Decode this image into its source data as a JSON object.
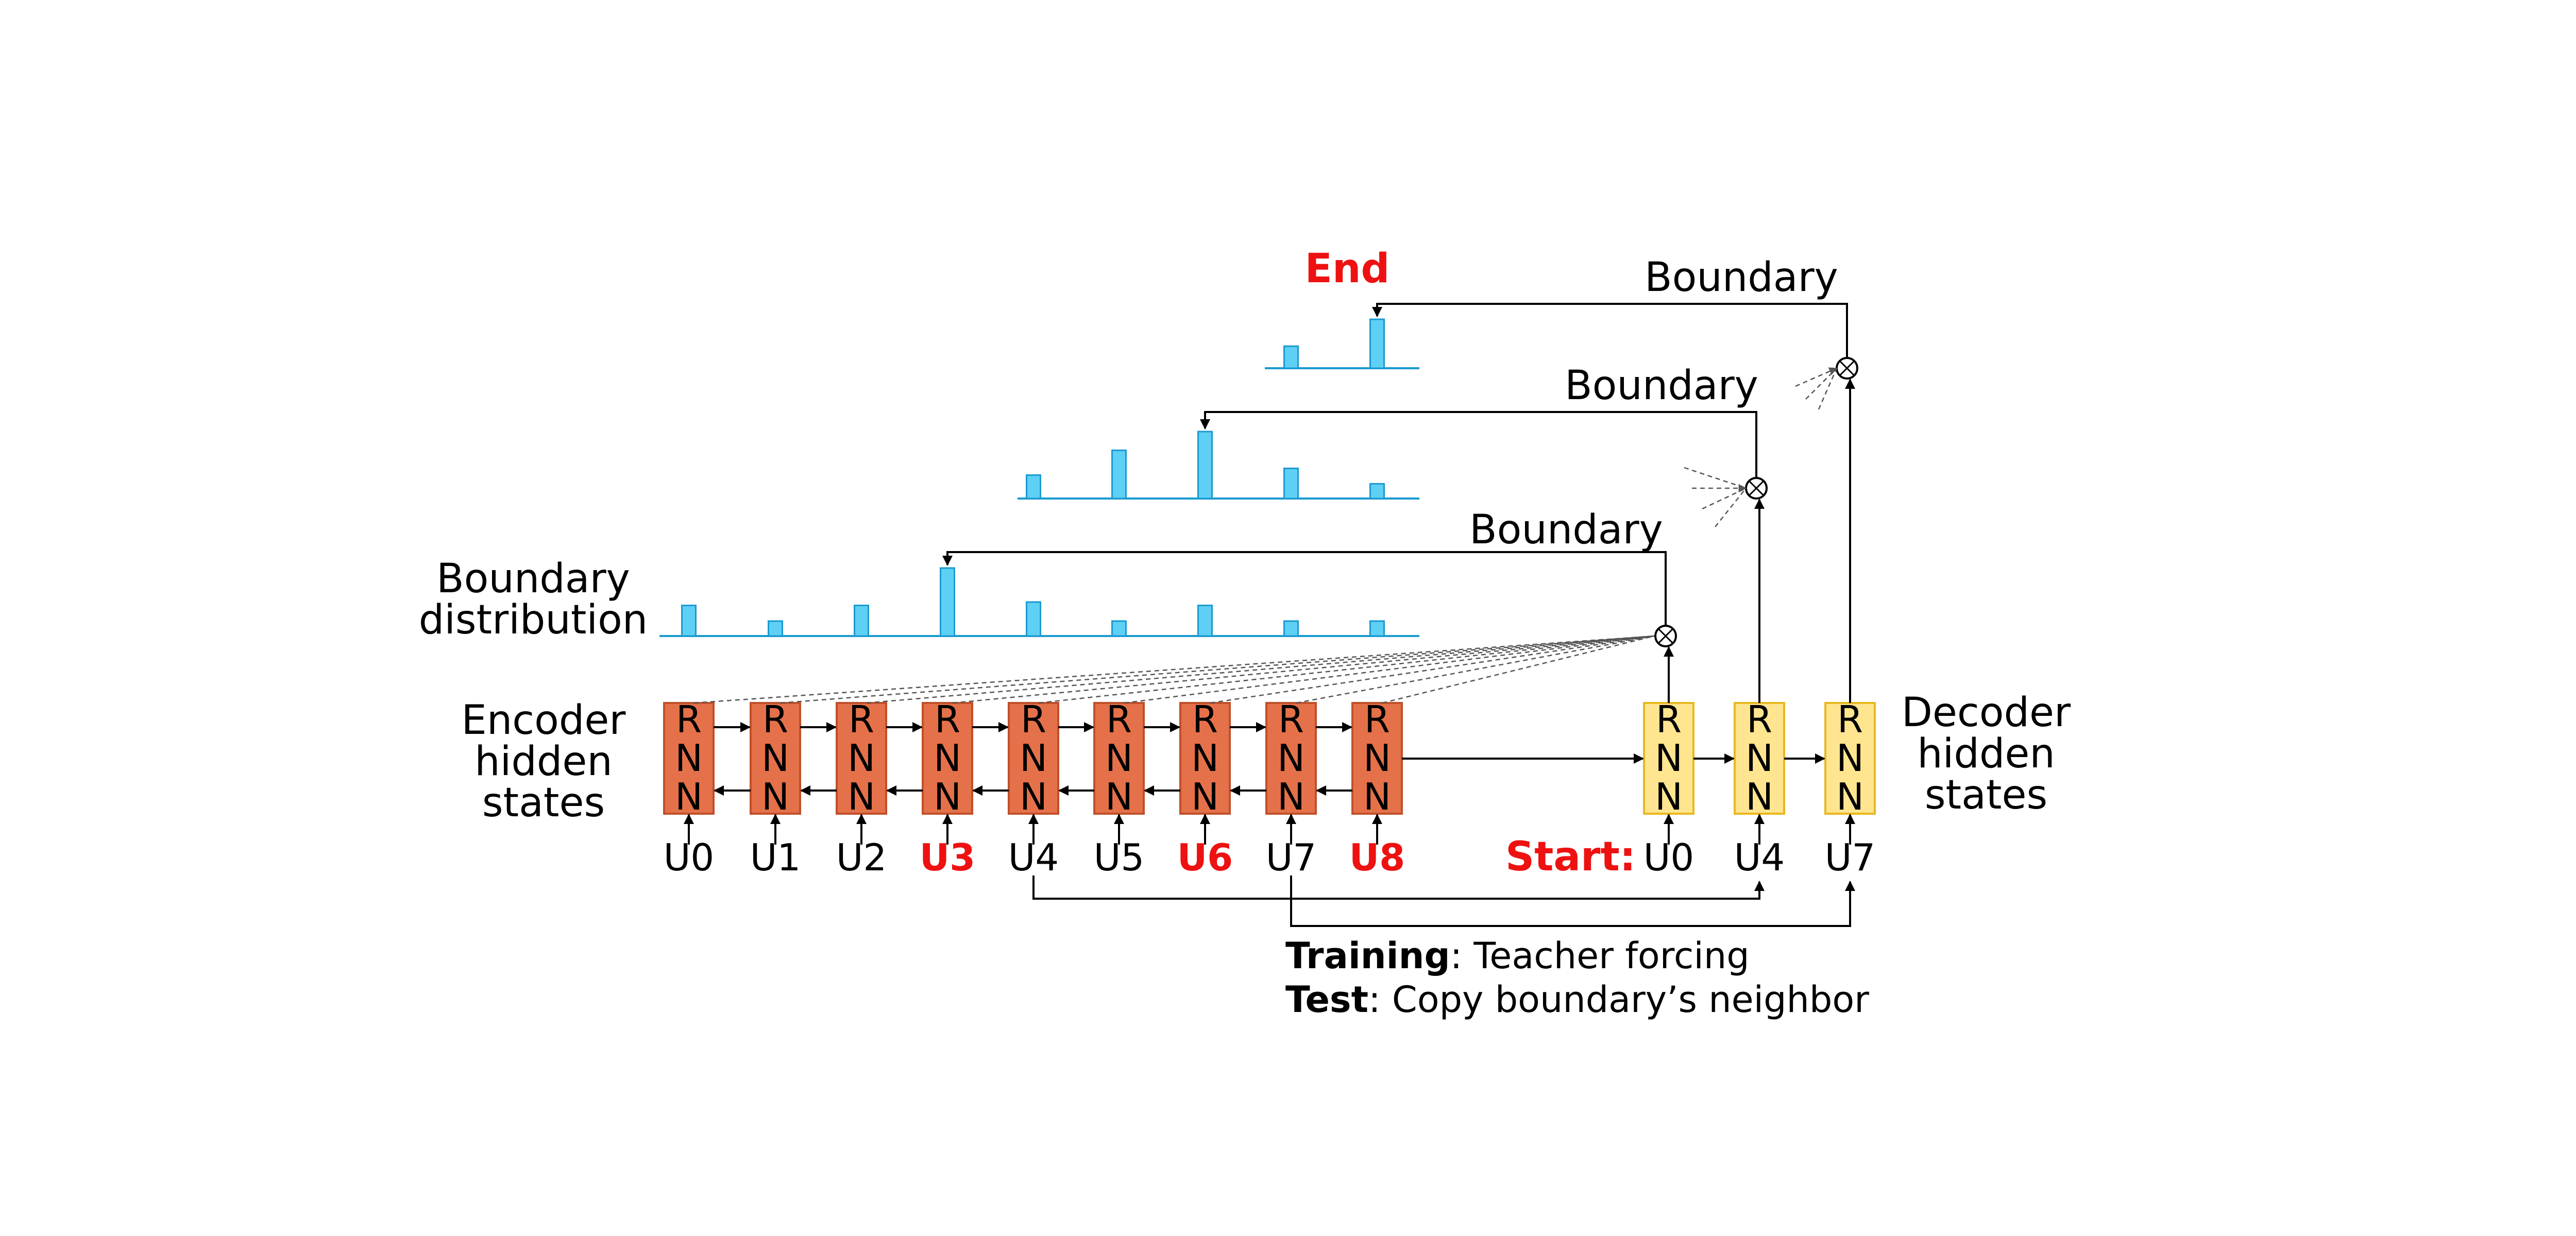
{
  "colors": {
    "encoder_fill": "#E5714A",
    "encoder_stroke": "#C0502A",
    "decoder_fill": "#FFE58F",
    "decoder_stroke": "#E8B820",
    "bar_fill": "#5FD0F5",
    "bar_stroke": "#1A9AD0",
    "highlight": "#EE1111"
  },
  "rnn_cell": {
    "letters": [
      "R",
      "N",
      "N"
    ]
  },
  "labels": {
    "encoder_label": [
      "Encoder",
      "hidden",
      "states"
    ],
    "decoder_label": [
      "Decoder",
      "hidden",
      "states"
    ],
    "distribution_label": [
      "Boundary",
      "distribution"
    ],
    "boundary": "Boundary",
    "end": "End",
    "start": "Start:",
    "training_bold": "Training",
    "training_rest": ": Teacher forcing",
    "test_bold": "Test",
    "test_rest": ": Copy boundary’s neighbor"
  },
  "encoder": {
    "inputs": [
      {
        "label": "U0",
        "highlight": false
      },
      {
        "label": "U1",
        "highlight": false
      },
      {
        "label": "U2",
        "highlight": false
      },
      {
        "label": "U3",
        "highlight": true
      },
      {
        "label": "U4",
        "highlight": false
      },
      {
        "label": "U5",
        "highlight": false
      },
      {
        "label": "U6",
        "highlight": true
      },
      {
        "label": "U7",
        "highlight": false
      },
      {
        "label": "U8",
        "highlight": true
      }
    ]
  },
  "decoder": {
    "inputs": [
      {
        "label": "U0"
      },
      {
        "label": "U4"
      },
      {
        "label": "U7"
      }
    ]
  },
  "distributions": [
    {
      "step": 1,
      "bars": [
        {
          "position": 0,
          "value": 0.45
        },
        {
          "position": 1,
          "value": 0.22
        },
        {
          "position": 2,
          "value": 0.45
        },
        {
          "position": 3,
          "value": 1.0
        },
        {
          "position": 4,
          "value": 0.5
        },
        {
          "position": 5,
          "value": 0.22
        },
        {
          "position": 6,
          "value": 0.45
        },
        {
          "position": 7,
          "value": 0.22
        },
        {
          "position": 8,
          "value": 0.22
        }
      ]
    },
    {
      "step": 2,
      "bars": [
        {
          "position": 4,
          "value": 0.35
        },
        {
          "position": 5,
          "value": 0.72
        },
        {
          "position": 6,
          "value": 1.0
        },
        {
          "position": 7,
          "value": 0.45
        },
        {
          "position": 8,
          "value": 0.22
        }
      ]
    },
    {
      "step": 3,
      "bars": [
        {
          "position": 7,
          "value": 0.45
        },
        {
          "position": 8,
          "value": 1.0
        }
      ]
    }
  ]
}
